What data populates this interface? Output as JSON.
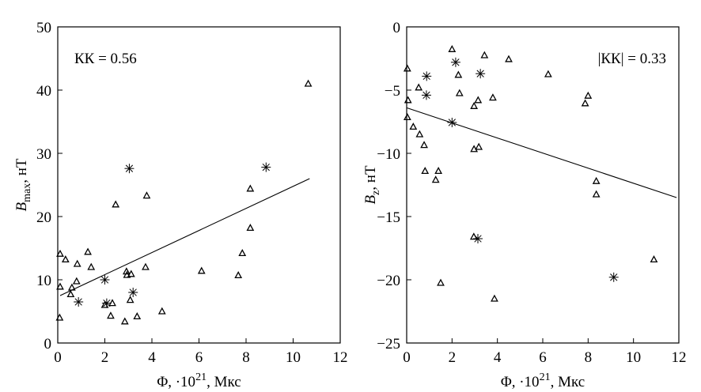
{
  "chart_data": [
    {
      "type": "scatter",
      "xlabel_main": "Φ, ·10",
      "xlabel_exp": "21",
      "xlabel_unit": ", Мкс",
      "ylabel_var": "B",
      "ylabel_sub": "max",
      "ylabel_unit": ", нТ",
      "annotation": "КК = 0.56",
      "xlim": [
        0,
        12
      ],
      "ylim": [
        0,
        50
      ],
      "xticks": [
        "0",
        "2",
        "4",
        "6",
        "8",
        "10",
        "12"
      ],
      "yticks": [
        "0",
        "10",
        "20",
        "30",
        "40",
        "50"
      ],
      "series": [
        {
          "marker": "triangle",
          "points": [
            [
              0.1,
              14.1
            ],
            [
              0.33,
              13.2
            ],
            [
              0.83,
              12.5
            ],
            [
              1.28,
              14.4
            ],
            [
              1.42,
              12.0
            ],
            [
              0.8,
              9.75
            ],
            [
              0.1,
              8.9
            ],
            [
              0.6,
              8.75
            ],
            [
              0.55,
              7.7
            ],
            [
              0.08,
              4.0
            ],
            [
              2.46,
              21.9
            ],
            [
              3.78,
              23.3
            ],
            [
              2.92,
              11.3
            ],
            [
              2.94,
              10.75
            ],
            [
              3.12,
              10.9
            ],
            [
              3.73,
              12.0
            ],
            [
              6.11,
              11.4
            ],
            [
              2.0,
              6.0
            ],
            [
              2.32,
              6.3
            ],
            [
              2.25,
              4.3
            ],
            [
              3.08,
              6.8
            ],
            [
              2.85,
              3.4
            ],
            [
              3.37,
              4.2
            ],
            [
              4.43,
              5.0
            ],
            [
              7.84,
              14.2
            ],
            [
              7.67,
              10.7
            ],
            [
              8.18,
              24.4
            ],
            [
              8.18,
              18.2
            ],
            [
              10.64,
              41.0
            ]
          ]
        },
        {
          "marker": "asterisk",
          "points": [
            [
              3.04,
              27.6
            ],
            [
              8.85,
              27.8
            ],
            [
              2.0,
              10.0
            ],
            [
              0.88,
              6.5
            ],
            [
              2.08,
              6.3
            ],
            [
              3.2,
              8.0
            ]
          ]
        }
      ],
      "fit_line": [
        [
          0.1,
          7.5
        ],
        [
          10.7,
          26.0
        ]
      ]
    },
    {
      "type": "scatter",
      "xlabel_main": "Φ, ·10",
      "xlabel_exp": "21",
      "xlabel_unit": ", Мкс",
      "ylabel_var": "B",
      "ylabel_sub": "z",
      "ylabel_unit": ", нТ",
      "annotation": "|КК| = 0.33",
      "xlim": [
        0,
        12
      ],
      "ylim": [
        -25,
        0
      ],
      "xticks": [
        "0",
        "2",
        "4",
        "6",
        "8",
        "10",
        "12"
      ],
      "yticks": [
        "−25",
        "−20",
        "−15",
        "−10",
        "−5",
        "0"
      ],
      "series": [
        {
          "marker": "triangle",
          "points": [
            [
              2.0,
              -1.77
            ],
            [
              3.43,
              -2.25
            ],
            [
              4.5,
              -2.56
            ],
            [
              0.03,
              -3.3
            ],
            [
              2.28,
              -3.8
            ],
            [
              0.53,
              -4.8
            ],
            [
              2.33,
              -5.25
            ],
            [
              0.06,
              -5.8
            ],
            [
              3.15,
              -5.8
            ],
            [
              3.8,
              -5.6
            ],
            [
              2.97,
              -6.27
            ],
            [
              0.03,
              -7.15
            ],
            [
              0.29,
              -7.9
            ],
            [
              0.57,
              -8.5
            ],
            [
              0.77,
              -9.35
            ],
            [
              2.97,
              -9.67
            ],
            [
              3.18,
              -9.5
            ],
            [
              0.81,
              -11.4
            ],
            [
              1.4,
              -11.4
            ],
            [
              1.28,
              -12.1
            ],
            [
              6.24,
              -3.75
            ],
            [
              7.87,
              -6.05
            ],
            [
              8.0,
              -5.45
            ],
            [
              8.36,
              -12.2
            ],
            [
              8.36,
              -13.25
            ],
            [
              10.9,
              -18.4
            ],
            [
              2.96,
              -16.6
            ],
            [
              1.5,
              -20.25
            ],
            [
              3.87,
              -21.5
            ]
          ]
        },
        {
          "marker": "asterisk",
          "points": [
            [
              2.16,
              -2.8
            ],
            [
              0.88,
              -3.9
            ],
            [
              0.87,
              -5.4
            ],
            [
              3.25,
              -3.7
            ],
            [
              2.0,
              -7.56
            ],
            [
              3.14,
              -16.75
            ],
            [
              9.13,
              -19.8
            ]
          ]
        }
      ],
      "fit_line": [
        [
          0,
          -6.4
        ],
        [
          11.9,
          -13.5
        ]
      ]
    }
  ]
}
